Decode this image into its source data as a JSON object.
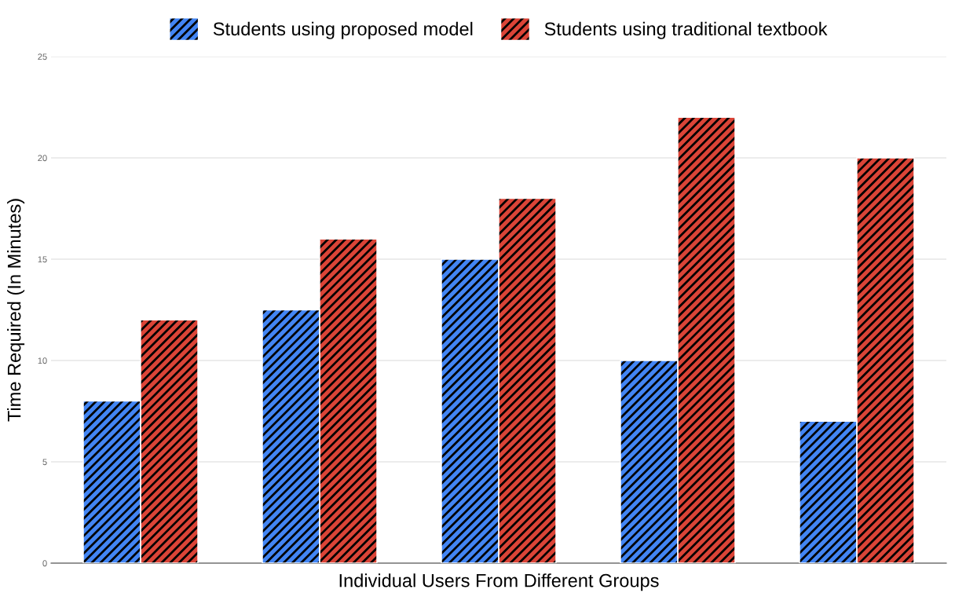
{
  "chart_data": {
    "type": "bar",
    "categories": [
      null,
      null,
      null,
      null,
      null
    ],
    "series": [
      {
        "name": "Students using proposed model",
        "color": "#4285f4",
        "values": [
          8,
          12.5,
          15,
          10,
          7
        ]
      },
      {
        "name": "Students using traditional textbook",
        "color": "#db4437",
        "values": [
          12,
          16,
          18,
          22,
          20
        ]
      }
    ],
    "xlabel": "Individual Users From Different Groups",
    "ylabel": "Time Required (In Minutes)",
    "ylim": [
      0,
      25
    ],
    "yticks": [
      0,
      5,
      10,
      15,
      20,
      25
    ],
    "grid": "y",
    "legend": "top"
  }
}
